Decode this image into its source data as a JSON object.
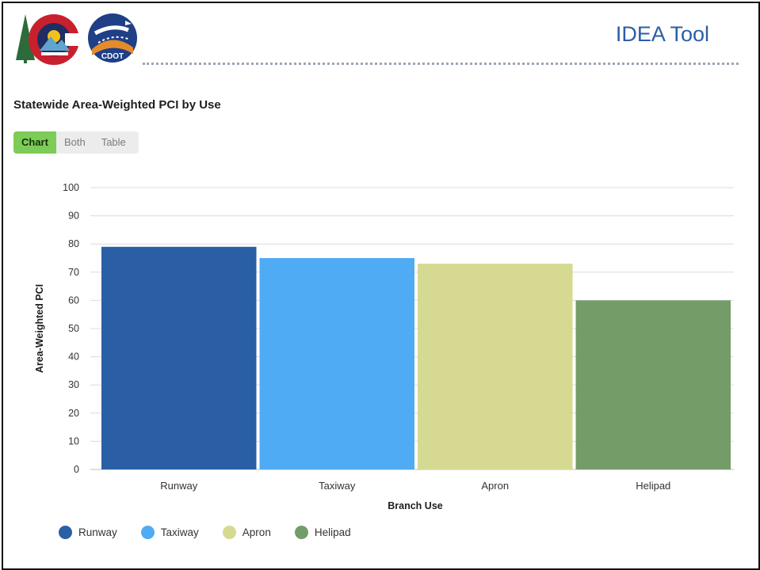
{
  "header": {
    "app_title": "IDEA Tool",
    "logos": [
      {
        "name": "colorado-state-logo-icon",
        "text": ""
      },
      {
        "name": "cdot-logo-icon",
        "text": "CDOT"
      }
    ]
  },
  "chart_title": "Statewide Area-Weighted PCI by Use",
  "view_toggle": {
    "options": [
      "Chart",
      "Both",
      "Table"
    ],
    "selected": "Chart"
  },
  "chart_data": {
    "type": "bar",
    "title": "Statewide Area-Weighted PCI by Use",
    "xlabel": "Branch Use",
    "ylabel": "Area-Weighted PCI",
    "categories": [
      "Runway",
      "Taxiway",
      "Apron",
      "Helipad"
    ],
    "values": [
      79,
      75,
      73,
      60
    ],
    "colors": [
      "#2a5fa6",
      "#4fabf4",
      "#d6d992",
      "#739c69"
    ],
    "ylim": [
      0,
      100
    ],
    "yticks": [
      0,
      10,
      20,
      30,
      40,
      50,
      60,
      70,
      80,
      90,
      100
    ],
    "grid": true,
    "legend": {
      "placement": "bottom-left",
      "entries": [
        "Runway",
        "Taxiway",
        "Apron",
        "Helipad"
      ]
    }
  }
}
